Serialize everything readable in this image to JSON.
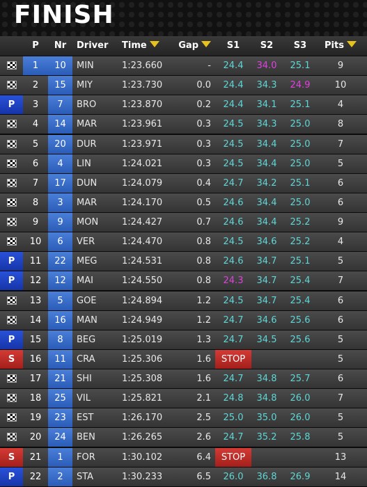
{
  "title": "FINISH",
  "headers": {
    "pos": "P",
    "nr": "Nr",
    "driver": "Driver",
    "time": "Time",
    "gap": "Gap",
    "s1": "S1",
    "s2": "S2",
    "s3": "S3",
    "pits": "Pits"
  },
  "colors": {
    "sector_normal": "#5fd6d6",
    "sector_best": "#e040e0",
    "pit_badge": "#2952d9",
    "stop_badge": "#d43b35",
    "number_box": "#3b6fd0",
    "sort_arrow": "#e8c21c"
  },
  "rows": [
    {
      "status": "flag",
      "pos": "1",
      "nr": "10",
      "driver": "MIN",
      "time": "1:23.660",
      "gap": "-",
      "s1": "24.4",
      "s2": "34.0",
      "s3": "25.1",
      "pits": "9",
      "best": [
        "s2"
      ],
      "pos_highlight": true
    },
    {
      "status": "flag",
      "pos": "2",
      "nr": "15",
      "driver": "MIY",
      "time": "1:23.730",
      "gap": "0.0",
      "s1": "24.4",
      "s2": "34.3",
      "s3": "24.9",
      "pits": "10",
      "best": [
        "s3"
      ]
    },
    {
      "status": "pit",
      "status_label": "P",
      "pos": "3",
      "nr": "7",
      "driver": "BRO",
      "time": "1:23.870",
      "gap": "0.2",
      "s1": "24.4",
      "s2": "34.1",
      "s3": "25.1",
      "pits": "4",
      "best": []
    },
    {
      "status": "flag",
      "pos": "4",
      "nr": "14",
      "driver": "MAR",
      "time": "1:23.961",
      "gap": "0.3",
      "s1": "24.5",
      "s2": "34.3",
      "s3": "25.0",
      "pits": "8",
      "best": []
    },
    {
      "status": "flag",
      "pos": "5",
      "nr": "20",
      "driver": "DUR",
      "time": "1:23.971",
      "gap": "0.3",
      "s1": "24.5",
      "s2": "34.4",
      "s3": "25.0",
      "pits": "7",
      "best": []
    },
    {
      "status": "flag",
      "pos": "6",
      "nr": "4",
      "driver": "LIN",
      "time": "1:24.021",
      "gap": "0.3",
      "s1": "24.5",
      "s2": "34.4",
      "s3": "25.0",
      "pits": "5",
      "best": []
    },
    {
      "status": "flag",
      "pos": "7",
      "nr": "17",
      "driver": "DUN",
      "time": "1:24.079",
      "gap": "0.4",
      "s1": "24.7",
      "s2": "34.2",
      "s3": "25.1",
      "pits": "6",
      "best": []
    },
    {
      "status": "flag",
      "pos": "8",
      "nr": "3",
      "driver": "MAR",
      "time": "1:24.170",
      "gap": "0.5",
      "s1": "24.6",
      "s2": "34.4",
      "s3": "25.0",
      "pits": "6",
      "best": []
    },
    {
      "status": "flag",
      "pos": "9",
      "nr": "9",
      "driver": "MON",
      "time": "1:24.427",
      "gap": "0.7",
      "s1": "24.6",
      "s2": "34.4",
      "s3": "25.2",
      "pits": "9",
      "best": []
    },
    {
      "status": "flag",
      "pos": "10",
      "nr": "6",
      "driver": "VER",
      "time": "1:24.470",
      "gap": "0.8",
      "s1": "24.5",
      "s2": "34.6",
      "s3": "25.2",
      "pits": "4",
      "best": []
    },
    {
      "status": "pit",
      "status_label": "P",
      "pos": "11",
      "nr": "22",
      "driver": "MEG",
      "time": "1:24.531",
      "gap": "0.8",
      "s1": "24.6",
      "s2": "34.7",
      "s3": "25.1",
      "pits": "5",
      "best": []
    },
    {
      "status": "pit",
      "status_label": "P",
      "pos": "12",
      "nr": "12",
      "driver": "MAI",
      "time": "1:24.550",
      "gap": "0.8",
      "s1": "24.3",
      "s2": "34.7",
      "s3": "25.4",
      "pits": "7",
      "best": [
        "s1"
      ]
    },
    {
      "status": "flag",
      "pos": "13",
      "nr": "5",
      "driver": "GOE",
      "time": "1:24.894",
      "gap": "1.2",
      "s1": "24.5",
      "s2": "34.7",
      "s3": "25.4",
      "pits": "6",
      "best": []
    },
    {
      "status": "flag",
      "pos": "14",
      "nr": "16",
      "driver": "MAN",
      "time": "1:24.949",
      "gap": "1.2",
      "s1": "24.7",
      "s2": "34.6",
      "s3": "25.6",
      "pits": "6",
      "best": []
    },
    {
      "status": "pit",
      "status_label": "P",
      "pos": "15",
      "nr": "8",
      "driver": "BEG",
      "time": "1:25.019",
      "gap": "1.3",
      "s1": "24.7",
      "s2": "34.5",
      "s3": "25.6",
      "pits": "5",
      "best": []
    },
    {
      "status": "stop",
      "status_label": "S",
      "pos": "16",
      "nr": "11",
      "driver": "CRA",
      "time": "1:25.306",
      "gap": "1.6",
      "s1": "STOP",
      "s2": "",
      "s3": "",
      "pits": "5",
      "best": []
    },
    {
      "status": "flag",
      "pos": "17",
      "nr": "21",
      "driver": "SHI",
      "time": "1:25.308",
      "gap": "1.6",
      "s1": "24.7",
      "s2": "34.8",
      "s3": "25.7",
      "pits": "6",
      "best": []
    },
    {
      "status": "flag",
      "pos": "18",
      "nr": "25",
      "driver": "VIL",
      "time": "1:25.821",
      "gap": "2.1",
      "s1": "24.8",
      "s2": "34.8",
      "s3": "26.0",
      "pits": "7",
      "best": []
    },
    {
      "status": "flag",
      "pos": "19",
      "nr": "23",
      "driver": "EST",
      "time": "1:26.170",
      "gap": "2.5",
      "s1": "25.0",
      "s2": "35.0",
      "s3": "26.0",
      "pits": "5",
      "best": []
    },
    {
      "status": "flag",
      "pos": "20",
      "nr": "24",
      "driver": "BEN",
      "time": "1:26.265",
      "gap": "2.6",
      "s1": "24.7",
      "s2": "35.2",
      "s3": "25.8",
      "pits": "5",
      "best": []
    },
    {
      "status": "stop",
      "status_label": "S",
      "pos": "21",
      "nr": "1",
      "driver": "FOR",
      "time": "1:30.102",
      "gap": "6.4",
      "s1": "STOP",
      "s2": "",
      "s3": "",
      "pits": "13",
      "best": []
    },
    {
      "status": "pit",
      "status_label": "P",
      "pos": "22",
      "nr": "2",
      "driver": "STA",
      "time": "1:30.233",
      "gap": "6.5",
      "s1": "26.0",
      "s2": "36.8",
      "s3": "26.9",
      "pits": "14",
      "best": []
    }
  ]
}
